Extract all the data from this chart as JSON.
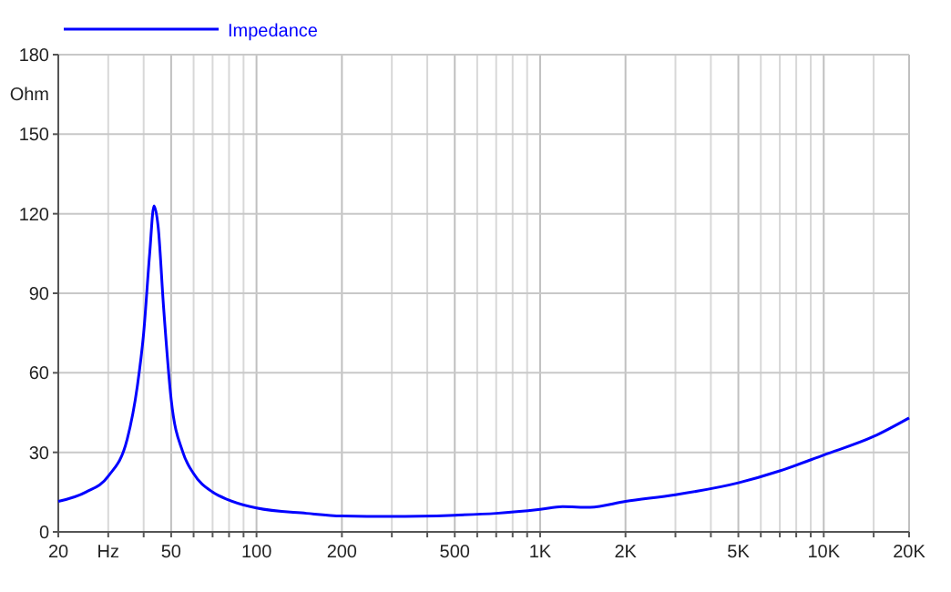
{
  "chart_data": {
    "type": "line",
    "xlabel": "Hz",
    "ylabel": "Ohm",
    "log": "x",
    "grid": true,
    "legend": "top left",
    "xlim": [
      20,
      20000
    ],
    "ylim": [
      0,
      180
    ],
    "xticks": [
      20,
      {
        "value": 30,
        "label": null
      },
      {
        "value": 40,
        "label": null
      },
      50,
      {
        "value": 60,
        "label": null
      },
      {
        "value": 70,
        "label": null
      },
      {
        "value": 80,
        "label": null
      },
      {
        "value": 90,
        "label": null
      },
      100,
      200,
      {
        "value": 300,
        "label": null
      },
      {
        "value": 400,
        "label": null
      },
      500,
      {
        "value": 600,
        "label": null
      },
      {
        "value": 700,
        "label": null
      },
      {
        "value": 800,
        "label": null
      },
      {
        "value": 900,
        "label": null
      },
      {
        "value": 1000,
        "label": "1K"
      },
      {
        "value": 2000,
        "label": "2K"
      },
      {
        "value": 3000,
        "label": null
      },
      {
        "value": 4000,
        "label": null
      },
      {
        "value": 5000,
        "label": "5K"
      },
      {
        "value": 6000,
        "label": null
      },
      {
        "value": 7000,
        "label": null
      },
      {
        "value": 8000,
        "label": null
      },
      {
        "value": 9000,
        "label": null
      },
      {
        "value": 10000,
        "label": "10K"
      },
      {
        "value": 15000,
        "label": null
      },
      {
        "value": 20000,
        "label": "20K"
      }
    ],
    "yticks": [
      0,
      30,
      60,
      90,
      120,
      150,
      180
    ],
    "series": [
      {
        "name": "Impedance",
        "color": "#0000ff",
        "x": [
          20,
          25,
          30,
          35,
          38,
          40,
          42,
          43.5,
          45,
          47,
          50,
          55,
          60,
          70,
          80,
          100,
          150,
          200,
          300,
          500,
          700,
          1000,
          1200,
          1500,
          2000,
          3000,
          5000,
          7000,
          10000,
          15000,
          20000
        ],
        "values": [
          11.5,
          15,
          21,
          35,
          55,
          75,
          105,
          123,
          115,
          85,
          50,
          30,
          22,
          15,
          12,
          9,
          7,
          6,
          5.8,
          6.3,
          7,
          8.5,
          9.5,
          9.3,
          11.5,
          14,
          18.5,
          23,
          29,
          36,
          43
        ]
      }
    ]
  }
}
